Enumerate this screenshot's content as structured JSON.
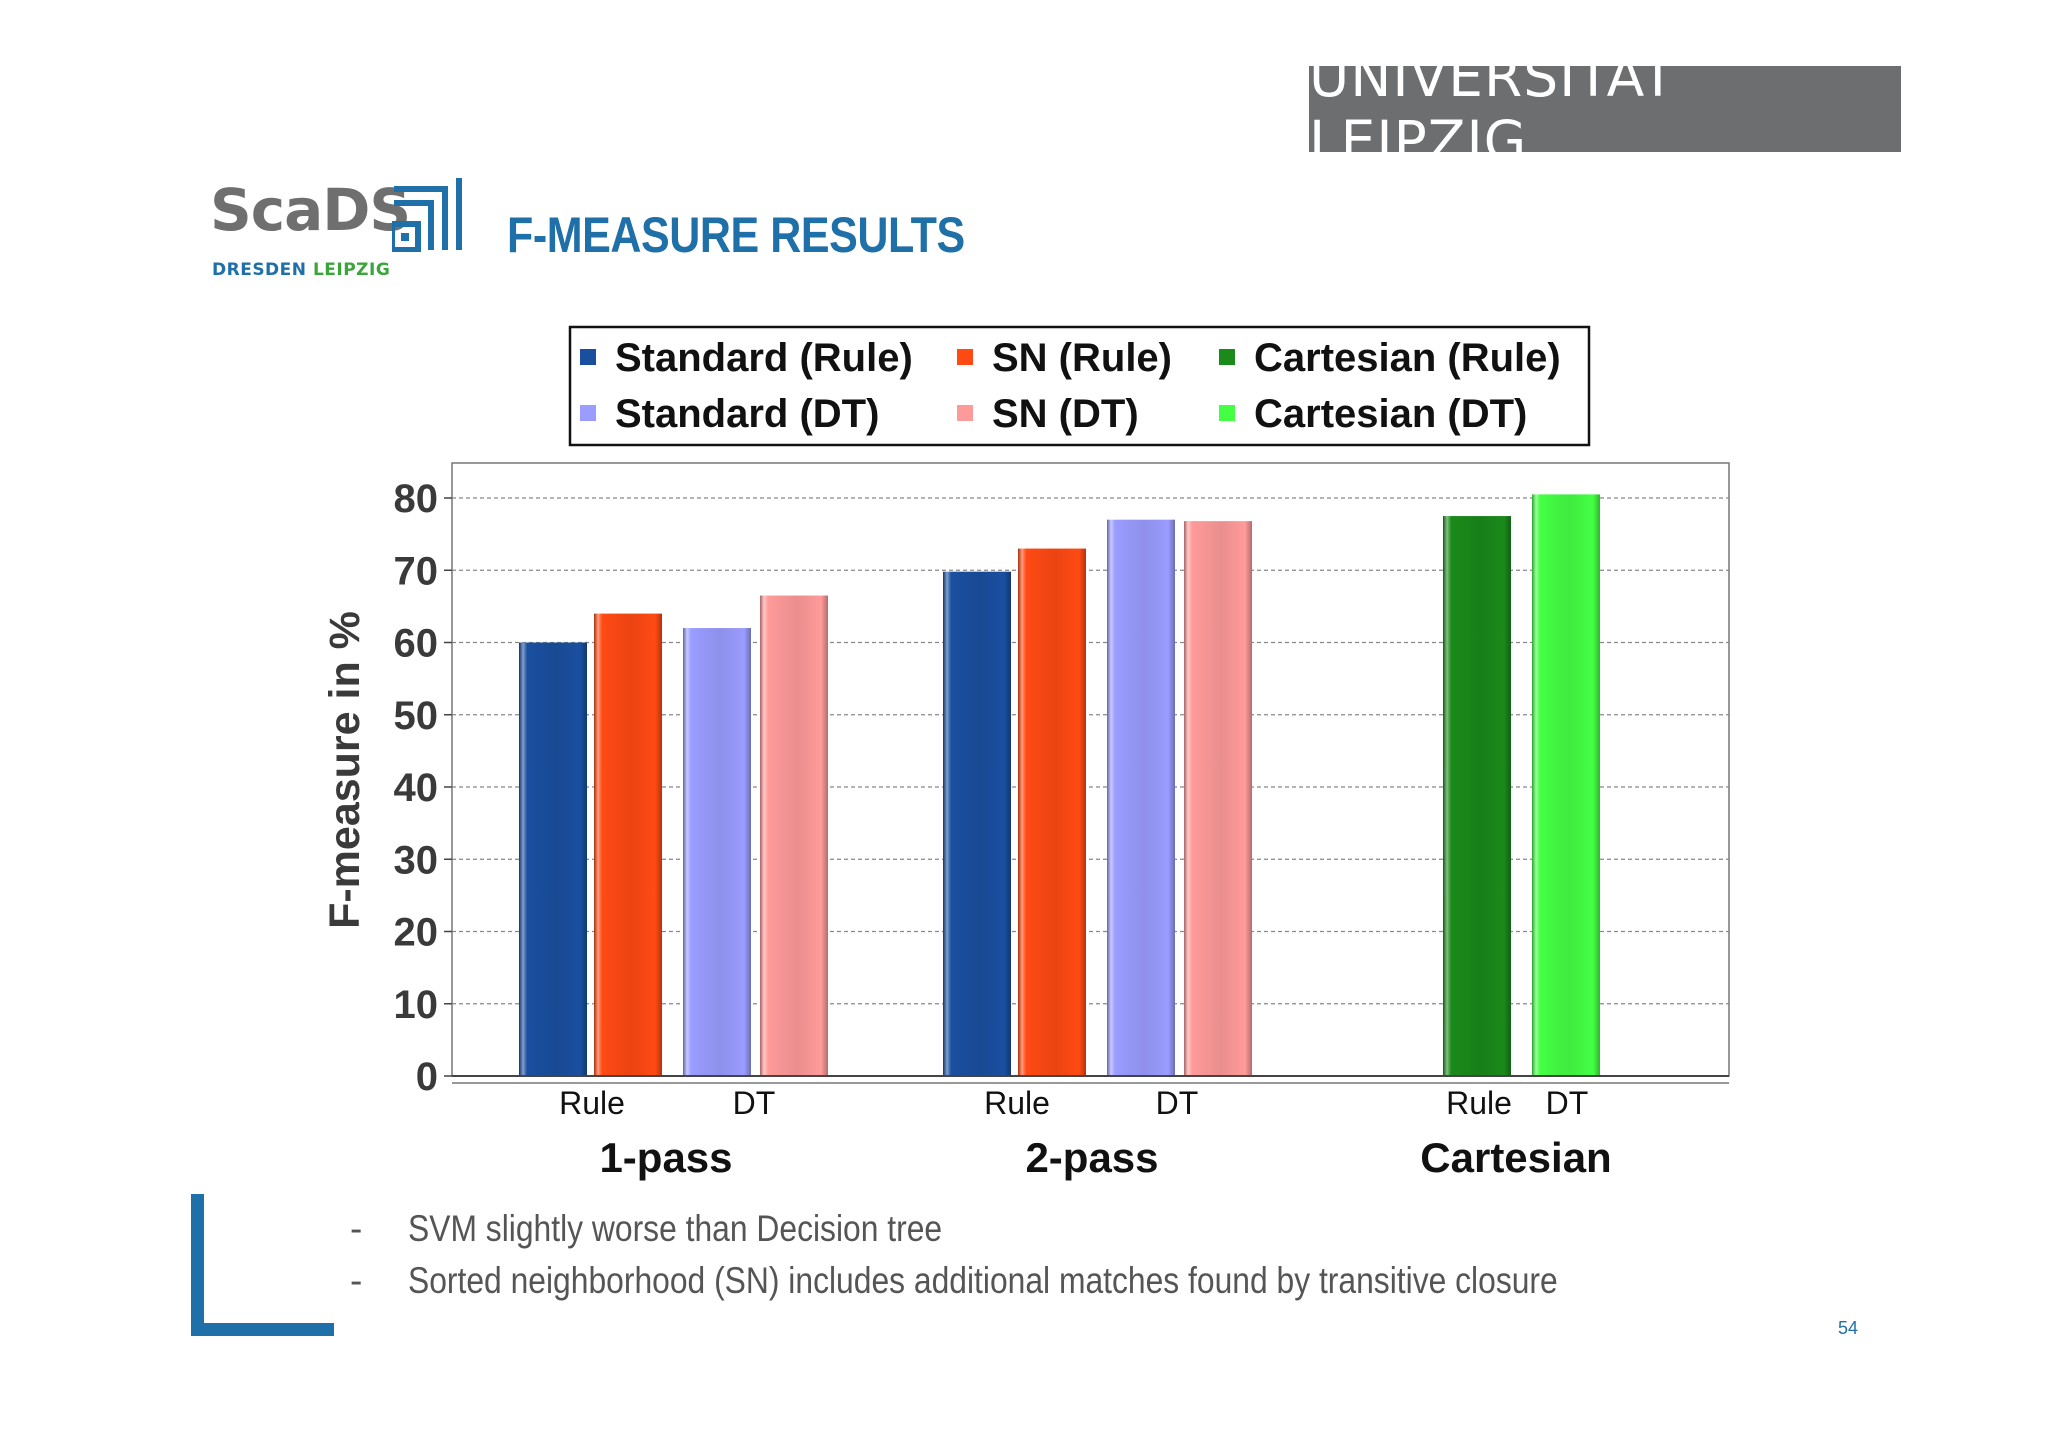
{
  "header": {
    "university": "UNIVERSITÄT LEIPZIG",
    "logo_main": "ScaDS",
    "logo_sub_1": "DRESDEN",
    "logo_sub_2": "LEIPZIG",
    "title": "F-MEASURE RESULTS"
  },
  "chart_data": {
    "type": "bar",
    "title": "",
    "ylabel": "F-measure in %",
    "xlabel": "",
    "ylim": [
      0,
      80
    ],
    "yticks": [
      0,
      10,
      20,
      30,
      40,
      50,
      60,
      70,
      80
    ],
    "grid": true,
    "legend_position": "top",
    "groups": [
      {
        "name": "1-pass",
        "sublabels": [
          "Rule",
          "DT"
        ]
      },
      {
        "name": "2-pass",
        "sublabels": [
          "Rule",
          "DT"
        ]
      },
      {
        "name": "Cartesian",
        "sublabels": [
          "Rule",
          "DT"
        ]
      }
    ],
    "series": [
      {
        "name": "Standard (Rule)",
        "color": "#1a4fa0",
        "values": [
          60,
          69.8,
          null
        ]
      },
      {
        "name": "SN (Rule)",
        "color": "#ff4a14",
        "values": [
          64,
          73,
          null
        ]
      },
      {
        "name": "Cartesian (Rule)",
        "color": "#1a8a1a",
        "values": [
          null,
          null,
          77.5
        ]
      },
      {
        "name": "Standard (DT)",
        "color": "#9a9cff",
        "values": [
          62,
          77,
          null
        ]
      },
      {
        "name": "SN (DT)",
        "color": "#ff9a9a",
        "values": [
          66.5,
          76.8,
          null
        ]
      },
      {
        "name": "Cartesian (DT)",
        "color": "#44ff44",
        "values": [
          null,
          null,
          80.5
        ]
      }
    ]
  },
  "bullets": [
    "SVM slightly worse than Decision tree",
    "Sorted neighborhood (SN) includes additional matches found by transitive closure"
  ],
  "bullet_marker": "-",
  "page_number": "54"
}
